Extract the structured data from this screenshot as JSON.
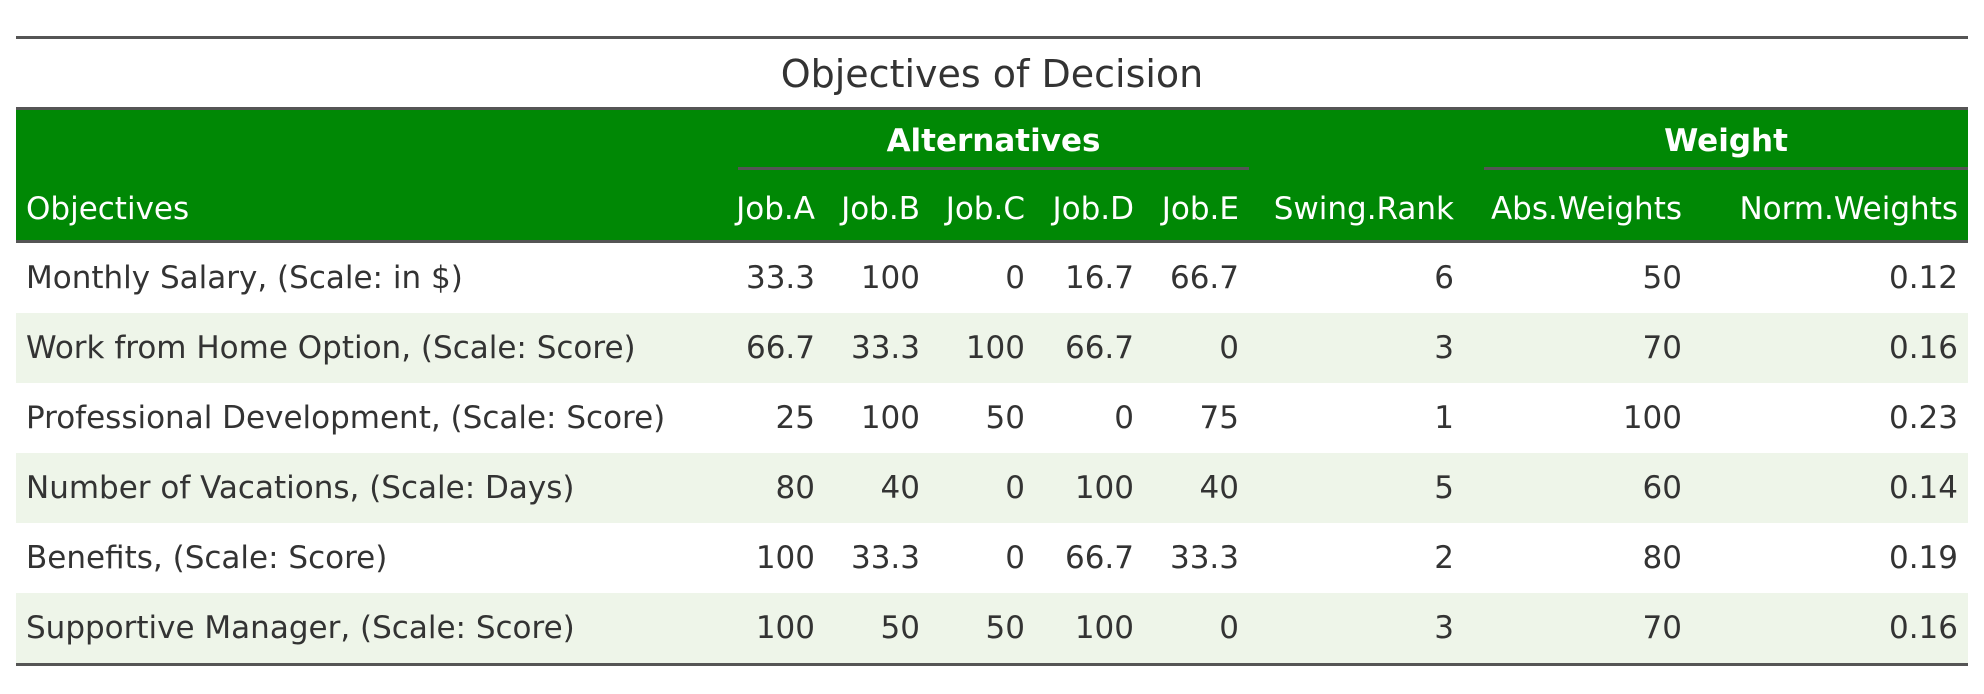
{
  "table": {
    "title": "Objectives of Decision",
    "spanners": {
      "alternatives": "Alternatives",
      "weight": "Weight"
    },
    "columns": [
      "Objectives",
      "Job.A",
      "Job.B",
      "Job.C",
      "Job.D",
      "Job.E",
      "Swing.Rank",
      "Abs.Weights",
      "Norm.Weights"
    ],
    "rows": [
      [
        "Monthly Salary, (Scale: in $)",
        "33.3",
        "100",
        "0",
        "16.7",
        "66.7",
        "6",
        "50",
        "0.12"
      ],
      [
        "Work from Home Option, (Scale: Score)",
        "66.7",
        "33.3",
        "100",
        "66.7",
        "0",
        "3",
        "70",
        "0.16"
      ],
      [
        "Professional Development, (Scale: Score)",
        "25",
        "100",
        "50",
        "0",
        "75",
        "1",
        "100",
        "0.23"
      ],
      [
        "Number of Vacations, (Scale: Days)",
        "80",
        "40",
        "0",
        "100",
        "40",
        "5",
        "60",
        "0.14"
      ],
      [
        "Benefits, (Scale: Score)",
        "100",
        "33.3",
        "0",
        "66.7",
        "33.3",
        "2",
        "80",
        "0.19"
      ],
      [
        "Supportive Manager, (Scale: Score)",
        "100",
        "50",
        "50",
        "100",
        "0",
        "3",
        "70",
        "0.16"
      ]
    ],
    "colors": {
      "header_background": "#008805",
      "header_text": "#ffffff",
      "stripe": "#eef5e9",
      "rule": "#555555"
    }
  }
}
